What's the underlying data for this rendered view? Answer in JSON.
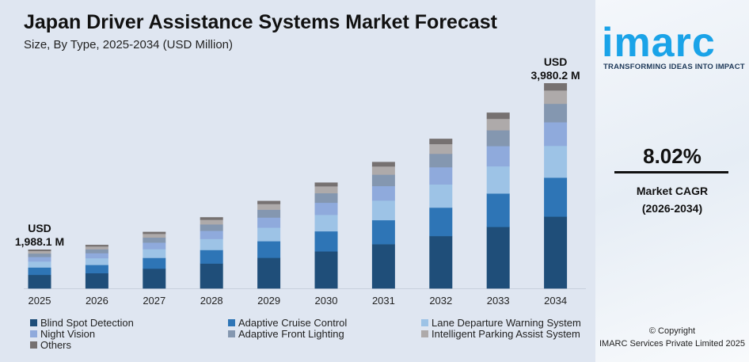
{
  "chart_data": {
    "type": "bar",
    "stacked": true,
    "title": "Japan Driver Assistance Systems Market Forecast",
    "subtitle": "Size, By Type, 2025-2034 (USD Million)",
    "categories": [
      "2025",
      "2026",
      "2027",
      "2028",
      "2029",
      "2030",
      "2031",
      "2032",
      "2033",
      "2034"
    ],
    "totals": [
      1988.1,
      2147.6,
      2319.9,
      2506.0,
      2707.0,
      2924.1,
      3158.6,
      3412.0,
      3685.6,
      3980.2
    ],
    "series": [
      {
        "name": "Blind Spot Detection",
        "color": "#1f4e79",
        "share": 0.35
      },
      {
        "name": "Adaptive Cruise Control",
        "color": "#2e75b6",
        "share": 0.19
      },
      {
        "name": "Lane Departure Warning System",
        "color": "#9dc3e6",
        "share": 0.155
      },
      {
        "name": "Night Vision",
        "color": "#8faadc",
        "share": 0.115
      },
      {
        "name": "Adaptive Front Lighting",
        "color": "#8497b0",
        "share": 0.09
      },
      {
        "name": "Intelligent Parking Assist System",
        "color": "#aeaaaa",
        "share": 0.065
      },
      {
        "name": "Others",
        "color": "#767171",
        "share": 0.035
      }
    ],
    "annotations": [
      {
        "category": "2025",
        "line1": "USD",
        "line2": "1,988.1 M"
      },
      {
        "category": "2034",
        "line1": "USD",
        "line2": "3,980.2 M"
      }
    ],
    "grid": false,
    "legend_position": "bottom"
  },
  "brand": {
    "logo": "imarc",
    "tagline": "TRANSFORMING IDEAS INTO IMPACT"
  },
  "cagr": {
    "value": "8.02%",
    "label": "Market CAGR",
    "period": "(2026-2034)"
  },
  "copyright": {
    "line1": "© Copyright",
    "line2": "IMARC Services Private Limited 2025"
  }
}
